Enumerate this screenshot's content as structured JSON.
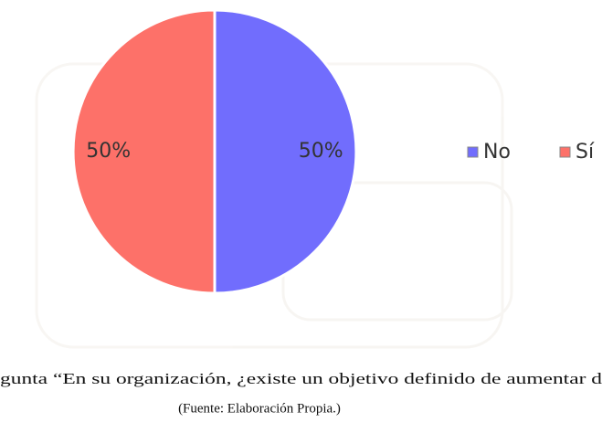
{
  "chart_data": {
    "type": "pie",
    "categories": [
      "No",
      "Sí"
    ],
    "values": [
      50,
      50
    ],
    "value_labels": [
      "50%",
      "50%"
    ],
    "colors": [
      "#716dfd",
      "#fd7169"
    ],
    "caption": "gunta “En su organización, ¿existe un objetivo definido de aumentar d",
    "source": "(Fuente: Elaboración Propia.)"
  }
}
